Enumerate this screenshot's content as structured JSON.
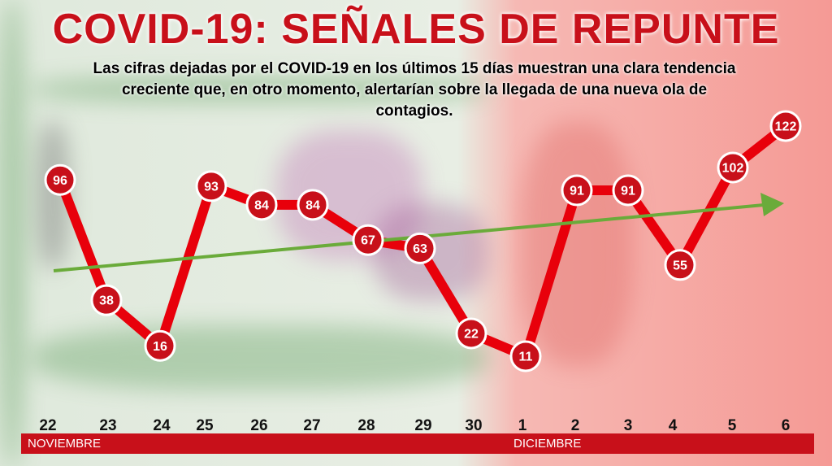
{
  "title": "COVID-19: SEÑALES DE REPUNTE",
  "subtitle": "Las cifras dejadas por el COVID-19 en los últimos 15 días muestran una clara tendencia creciente que, en otro momento, alertarían sobre la llegada de una nueva ola de contagios.",
  "months": [
    "NOVIEMBRE",
    "DICIEMBRE"
  ],
  "colors": {
    "line": "#e8000b",
    "marker": "#c8101a",
    "trend": "#6aab3a",
    "month_bar": "#c8101a"
  },
  "chart_data": {
    "type": "line",
    "title": "COVID-19: SEÑALES DE REPUNTE",
    "categories": [
      "22",
      "23",
      "24",
      "25",
      "26",
      "27",
      "28",
      "29",
      "30",
      "1",
      "2",
      "3",
      "4",
      "5",
      "6"
    ],
    "values": [
      96,
      38,
      16,
      93,
      84,
      84,
      67,
      63,
      22,
      11,
      91,
      91,
      55,
      102,
      122
    ],
    "trend": "increasing",
    "xlabel": "",
    "ylabel": "",
    "grid": false
  }
}
